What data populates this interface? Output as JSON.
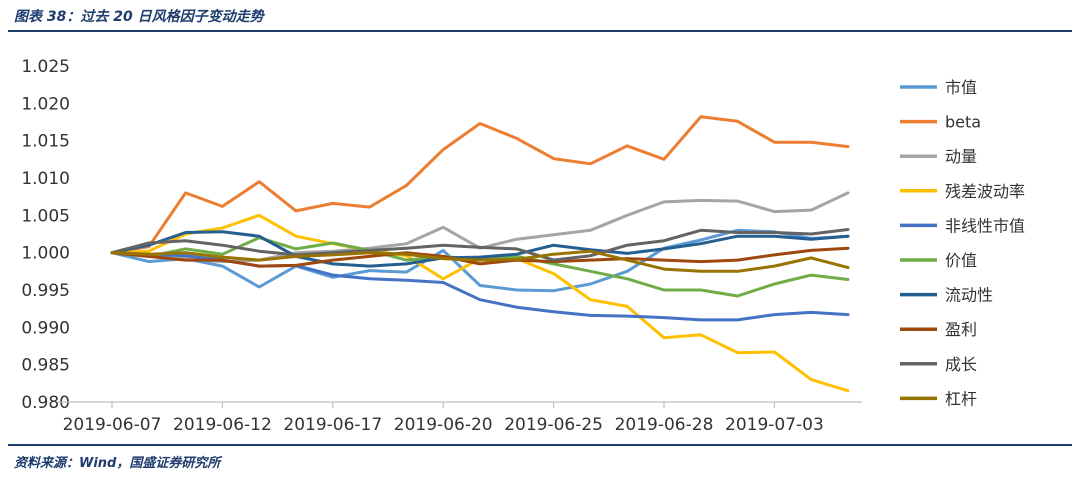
{
  "header": {
    "title": "图表 38：过去 20 日风格因子变动走势"
  },
  "footer": {
    "source": "资料来源：Wind，国盛证券研究所"
  },
  "colors": {
    "rule": "#1f3c6e",
    "axis": "#bfbfbf",
    "text": "#333333"
  },
  "chart_data": {
    "type": "line",
    "title": "",
    "xlabel": "",
    "ylabel": "",
    "ylim": [
      0.98,
      1.025
    ],
    "yticks": [
      "0.980",
      "0.985",
      "0.990",
      "0.995",
      "1.000",
      "1.005",
      "1.010",
      "1.015",
      "1.020",
      "1.025"
    ],
    "xticks": [
      {
        "index": 0,
        "label": "2019-06-07"
      },
      {
        "index": 3,
        "label": "2019-06-12"
      },
      {
        "index": 6,
        "label": "2019-06-17"
      },
      {
        "index": 9,
        "label": "2019-06-20"
      },
      {
        "index": 12,
        "label": "2019-06-25"
      },
      {
        "index": 15,
        "label": "2019-06-28"
      },
      {
        "index": 18,
        "label": "2019-07-03"
      }
    ],
    "grid": false,
    "legend_position": "right",
    "x": [
      "2019-06-07",
      "2019-06-10",
      "2019-06-11",
      "2019-06-12",
      "2019-06-13",
      "2019-06-14",
      "2019-06-17",
      "2019-06-18",
      "2019-06-19",
      "2019-06-20",
      "2019-06-21",
      "2019-06-24",
      "2019-06-25",
      "2019-06-26",
      "2019-06-27",
      "2019-06-28",
      "2019-07-01",
      "2019-07-02",
      "2019-07-03",
      "2019-07-04",
      "2019-07-05"
    ],
    "series": [
      {
        "name": "市值",
        "color": "#5b9bd5",
        "values": [
          1.0,
          0.9988,
          0.9992,
          0.9982,
          0.9954,
          0.9982,
          0.9967,
          0.9976,
          0.9974,
          1.0003,
          0.9956,
          0.995,
          0.9949,
          0.9958,
          0.9975,
          1.0006,
          1.0017,
          1.003,
          1.0028,
          1.0019,
          1.0022
        ]
      },
      {
        "name": "beta",
        "color": "#ed7d31",
        "values": [
          1.0,
          1.0008,
          1.008,
          1.0062,
          1.0095,
          1.0056,
          1.0066,
          1.0061,
          1.009,
          1.0138,
          1.0173,
          1.0153,
          1.0126,
          1.0119,
          1.0143,
          1.0125,
          1.0182,
          1.0176,
          1.0148,
          1.0148,
          1.0142
        ]
      },
      {
        "name": "动量",
        "color": "#a5a5a5",
        "values": [
          1.0,
          0.9995,
          0.9992,
          0.9988,
          0.999,
          1.0,
          1.0002,
          1.0006,
          1.0012,
          1.0034,
          1.0006,
          1.0018,
          1.0024,
          1.003,
          1.005,
          1.0068,
          1.007,
          1.0069,
          1.0055,
          1.0057,
          1.008
        ]
      },
      {
        "name": "残差波动率",
        "color": "#ffc000",
        "values": [
          1.0,
          1.0002,
          1.0025,
          1.0033,
          1.005,
          1.0022,
          1.0012,
          1.0003,
          0.9996,
          0.9965,
          0.9992,
          0.9992,
          0.9972,
          0.9937,
          0.9928,
          0.9886,
          0.989,
          0.9866,
          0.9867,
          0.983,
          0.9815
        ]
      },
      {
        "name": "非线性市值",
        "color": "#4472c4",
        "values": [
          1.0,
          0.9998,
          0.9996,
          0.999,
          0.9982,
          0.9983,
          0.997,
          0.9965,
          0.9963,
          0.996,
          0.9937,
          0.9927,
          0.9921,
          0.9916,
          0.9915,
          0.9913,
          0.991,
          0.991,
          0.9917,
          0.992,
          0.9917
        ]
      },
      {
        "name": "价值",
        "color": "#70ad47",
        "values": [
          1.0,
          0.9995,
          1.0005,
          0.9998,
          1.002,
          1.0005,
          1.0013,
          1.0003,
          0.999,
          0.9995,
          0.999,
          0.9995,
          0.9985,
          0.9975,
          0.9965,
          0.995,
          0.995,
          0.9942,
          0.9958,
          0.997,
          0.9964
        ]
      },
      {
        "name": "流动性",
        "color": "#255e91",
        "values": [
          1.0,
          1.001,
          1.0027,
          1.0028,
          1.0022,
          0.9995,
          0.9985,
          0.9982,
          0.9985,
          0.9993,
          0.9994,
          0.9998,
          1.001,
          1.0004,
          0.9999,
          1.0005,
          1.0012,
          1.0022,
          1.0022,
          1.0018,
          1.0022
        ]
      },
      {
        "name": "盈利",
        "color": "#9e480e",
        "values": [
          1.0,
          0.9995,
          0.999,
          0.999,
          0.9982,
          0.9983,
          0.999,
          0.9995,
          1.0,
          0.9995,
          0.9985,
          0.999,
          0.9988,
          0.999,
          0.9992,
          0.999,
          0.9988,
          0.999,
          0.9997,
          1.0003,
          1.0006
        ]
      },
      {
        "name": "成长",
        "color": "#636363",
        "values": [
          1.0,
          1.0013,
          1.0016,
          1.001,
          1.0002,
          0.9997,
          1.0,
          1.0003,
          1.0006,
          1.001,
          1.0007,
          1.0005,
          0.999,
          0.9996,
          1.001,
          1.0016,
          1.003,
          1.0027,
          1.0027,
          1.0025,
          1.0031
        ]
      },
      {
        "name": "杠杆",
        "color": "#997300",
        "values": [
          1.0,
          0.9998,
          1.0,
          0.9994,
          0.999,
          0.9995,
          0.9997,
          1.0,
          0.9998,
          0.9992,
          0.999,
          0.9991,
          0.9998,
          1.0002,
          0.999,
          0.9978,
          0.9975,
          0.9975,
          0.9982,
          0.9993,
          0.998
        ]
      }
    ]
  }
}
